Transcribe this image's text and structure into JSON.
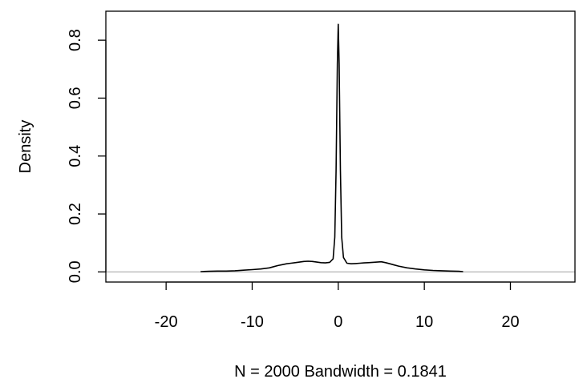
{
  "chart_data": {
    "type": "line",
    "xlabel": "N = 2000   Bandwidth = 0.1841",
    "ylabel": "Density",
    "xlim": [
      -27,
      27.5
    ],
    "ylim": [
      -0.035,
      0.9
    ],
    "x_ticks": [
      -20,
      -10,
      0,
      10,
      20
    ],
    "x_tick_labels": [
      "-20",
      "-10",
      "0",
      "10",
      "20"
    ],
    "y_ticks": [
      0.0,
      0.2,
      0.4,
      0.6,
      0.8
    ],
    "y_tick_labels": [
      "0.0",
      "0.2",
      "0.4",
      "0.6",
      "0.8"
    ],
    "grid": false,
    "baseline_y": 0,
    "baseline_color": "#bebebe",
    "series": [
      {
        "x": [
          -16,
          -15,
          -14,
          -13,
          -12,
          -11,
          -10,
          -9,
          -8,
          -7.5,
          -7,
          -6.5,
          -6,
          -5.5,
          -5,
          -4.5,
          -4,
          -3.5,
          -3,
          -2.5,
          -2,
          -1.5,
          -1,
          -0.6,
          -0.4,
          -0.25,
          -0.1,
          0,
          0.1,
          0.25,
          0.4,
          0.6,
          1,
          1.5,
          2,
          2.5,
          3,
          3.5,
          4,
          4.5,
          5,
          5.5,
          6,
          6.5,
          7,
          8,
          9,
          10,
          11,
          12,
          13,
          14,
          14.5
        ],
        "y": [
          0.001,
          0.002,
          0.003,
          0.003,
          0.004,
          0.006,
          0.008,
          0.01,
          0.014,
          0.018,
          0.022,
          0.025,
          0.028,
          0.03,
          0.032,
          0.034,
          0.036,
          0.037,
          0.036,
          0.034,
          0.032,
          0.031,
          0.033,
          0.045,
          0.12,
          0.35,
          0.72,
          0.855,
          0.72,
          0.35,
          0.12,
          0.05,
          0.03,
          0.028,
          0.029,
          0.03,
          0.031,
          0.032,
          0.033,
          0.034,
          0.035,
          0.032,
          0.028,
          0.024,
          0.02,
          0.014,
          0.01,
          0.007,
          0.005,
          0.004,
          0.003,
          0.002,
          0.001
        ],
        "color": "#000000"
      }
    ]
  }
}
